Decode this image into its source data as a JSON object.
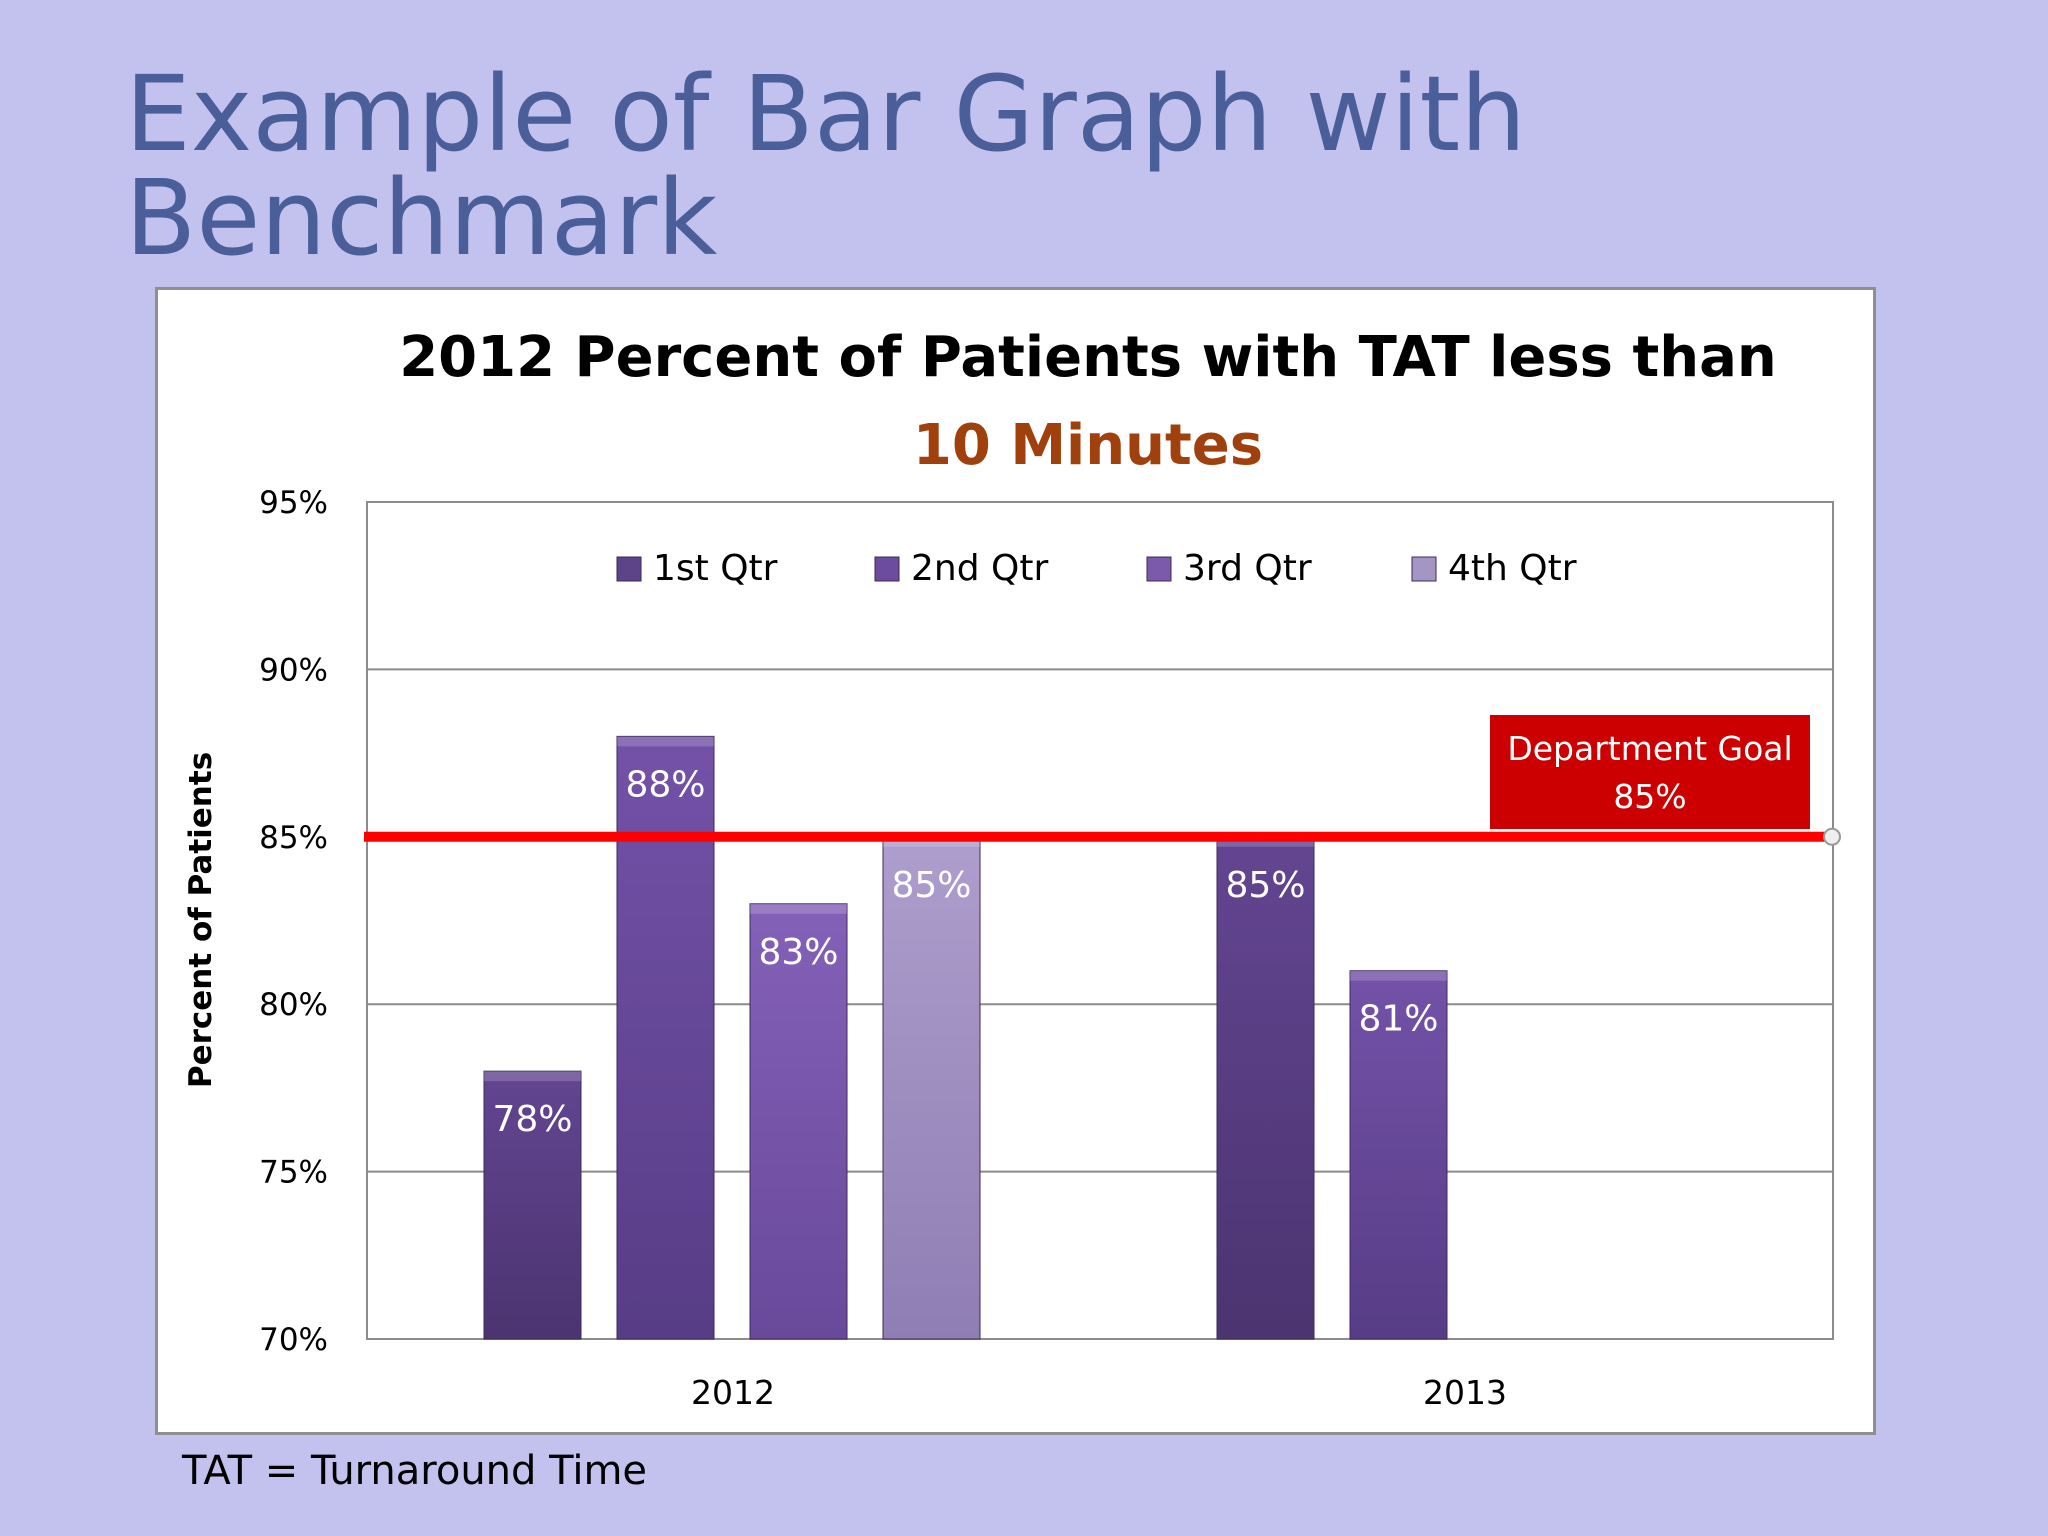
{
  "slide": {
    "title_line1": "Example of Bar Graph with",
    "title_line2": "Benchmark",
    "footnote": "TAT = Turnaround Time"
  },
  "chart_data": {
    "type": "bar",
    "title_line1": "2012 Percent of Patients with TAT less than",
    "title_line2": "10 Minutes",
    "xlabel": "",
    "ylabel": "Percent of Patients",
    "ylim": [
      70,
      95
    ],
    "yticks": [
      70,
      75,
      80,
      85,
      90,
      95
    ],
    "ytick_labels": [
      "70%",
      "75%",
      "80%",
      "85%",
      "90%",
      "95%"
    ],
    "grid": true,
    "legend_position": "top",
    "categories": [
      "2012",
      "2013"
    ],
    "series": [
      {
        "name": "1st Qtr",
        "values": [
          78,
          85
        ],
        "labels": [
          "78%",
          "85%"
        ],
        "color": "#5d4388"
      },
      {
        "name": "2nd Qtr",
        "values": [
          88,
          81
        ],
        "labels": [
          "88%",
          "81%"
        ],
        "color": "#6b4c9e"
      },
      {
        "name": "3rd Qtr",
        "values": [
          83,
          null
        ],
        "labels": [
          "83%",
          ""
        ],
        "color": "#7b5aab"
      },
      {
        "name": "4th Qtr",
        "values": [
          85,
          null
        ],
        "labels": [
          "85%",
          ""
        ],
        "color": "#a595c4"
      }
    ],
    "benchmark": {
      "value": 85,
      "label_line1": "Department Goal",
      "label_line2": "85%",
      "line_color": "#ff0000",
      "box_color": "#cc0000"
    },
    "colors": {
      "title": "#000000",
      "title_accent": "#a0410d",
      "gridline": "#8c8c8c",
      "bar_label": "#ffffff"
    }
  }
}
